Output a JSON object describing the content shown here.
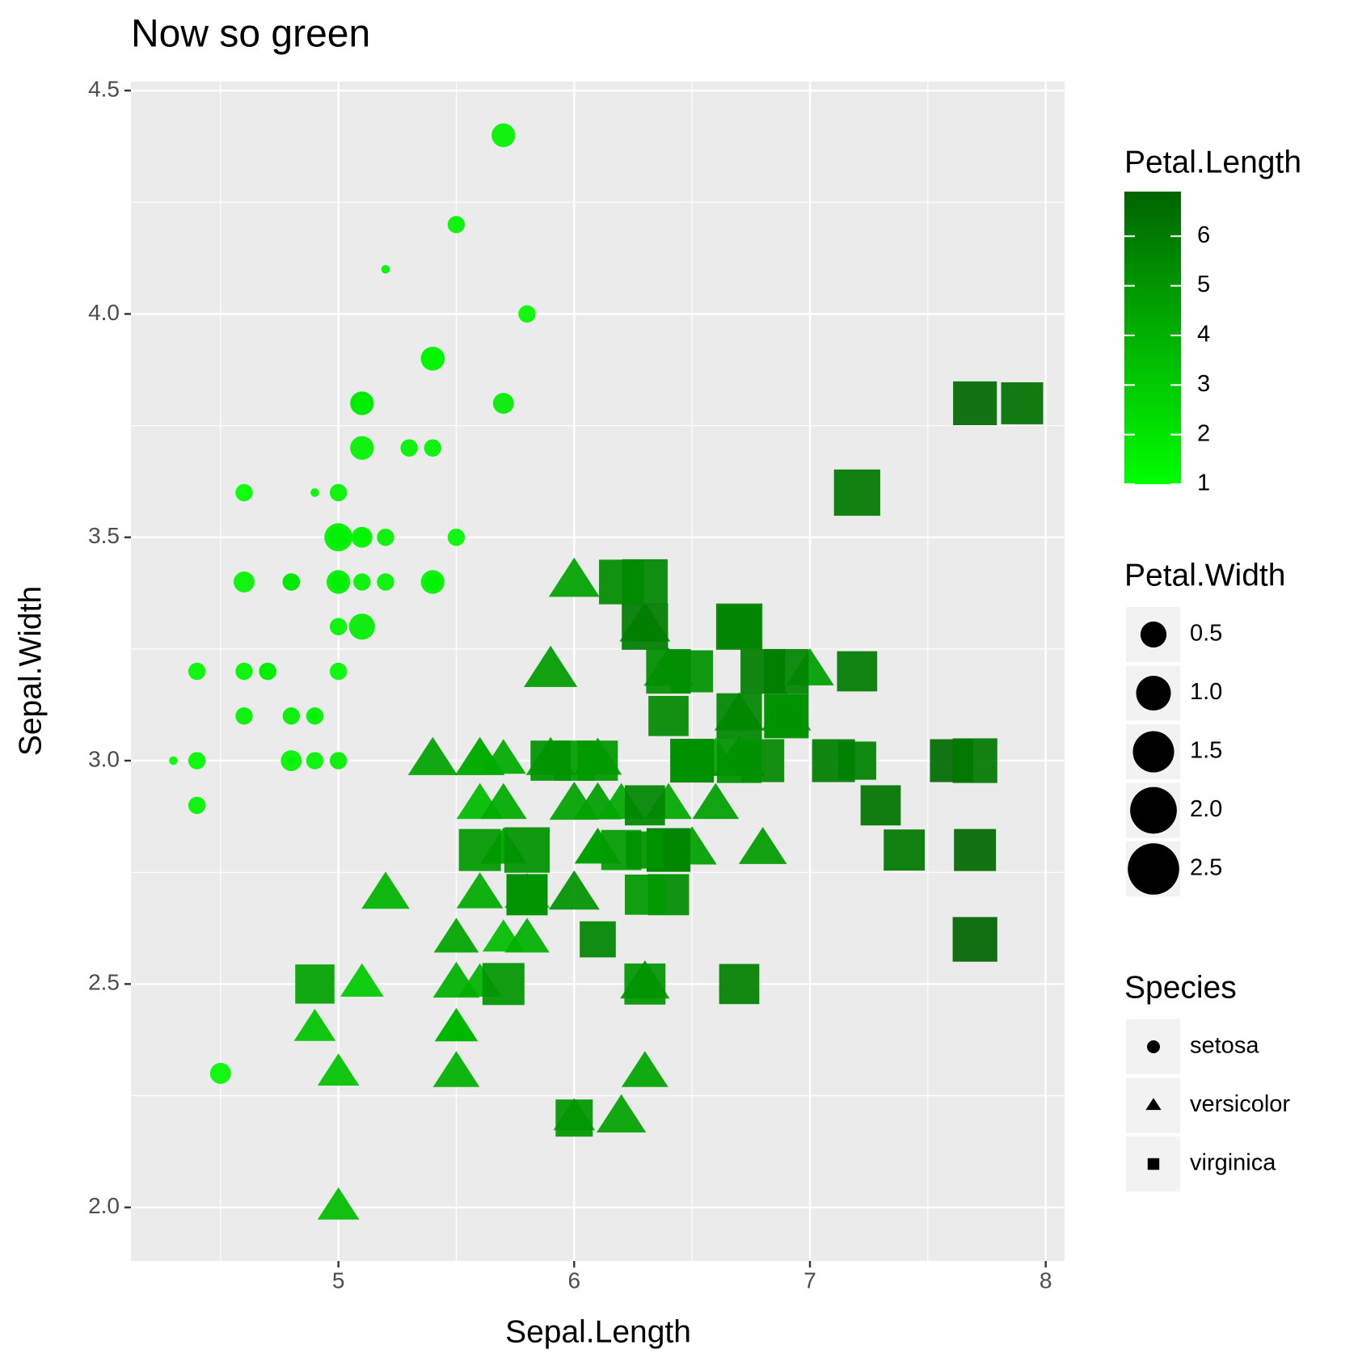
{
  "chart_data": {
    "type": "scatter",
    "title": "Now so green",
    "x_label": "Sepal.Length",
    "y_label": "Sepal.Width",
    "xlim": [
      4.12,
      8.08
    ],
    "ylim": [
      1.88,
      4.52
    ],
    "xticks": [
      5,
      6,
      7,
      8
    ],
    "yticks": [
      {
        "value": 2,
        "label": "2.0"
      },
      2.5,
      {
        "value": 3,
        "label": "3.0"
      },
      3.5,
      {
        "value": 4,
        "label": "4.0"
      },
      4.5
    ],
    "xminor": [
      4.5,
      5.5,
      6.5,
      7.5
    ],
    "yminor": [
      2.25,
      2.75,
      3.25,
      3.75,
      4.25
    ],
    "grid": true,
    "colorbar": {
      "title": "Petal.Length",
      "colors": [
        "#00ff00",
        "#006400"
      ],
      "lim": [
        1,
        6.9
      ],
      "ticks": [
        1,
        2,
        3,
        4,
        5,
        6
      ]
    },
    "size_legend": {
      "title": "Petal.Width",
      "ticks": [
        0.5,
        {
          "value": 1,
          "label": "1.0"
        },
        1.5,
        {
          "value": 2,
          "label": "2.0"
        },
        2.5
      ]
    },
    "shape_legend_title": "Species",
    "series": [
      {
        "name": "setosa",
        "shape": "circle",
        "x": [
          5.1,
          4.9,
          4.7,
          4.6,
          5.0,
          5.4,
          4.6,
          5.0,
          4.4,
          4.9,
          5.4,
          4.8,
          4.8,
          4.3,
          5.8,
          5.7,
          5.4,
          5.1,
          5.7,
          5.1,
          5.4,
          5.1,
          4.6,
          5.1,
          4.8,
          5.0,
          5.0,
          5.2,
          5.2,
          4.7,
          4.8,
          5.4,
          5.2,
          5.5,
          4.9,
          5.0,
          5.5,
          4.9,
          4.4,
          5.1,
          5.0,
          4.5,
          4.4,
          5.0,
          5.1,
          4.8,
          5.1,
          4.6,
          5.3,
          5.0
        ],
        "values": [
          3.5,
          3.0,
          3.2,
          3.1,
          3.6,
          3.9,
          3.4,
          3.4,
          2.9,
          3.1,
          3.7,
          3.4,
          3.0,
          3.0,
          4.0,
          4.4,
          3.9,
          3.5,
          3.8,
          3.8,
          3.4,
          3.7,
          3.6,
          3.3,
          3.4,
          3.0,
          3.4,
          3.5,
          3.4,
          3.2,
          3.1,
          3.4,
          4.1,
          4.2,
          3.1,
          3.2,
          3.5,
          3.6,
          3.0,
          3.4,
          3.5,
          2.3,
          3.2,
          3.5,
          3.8,
          3.0,
          3.8,
          3.2,
          3.7,
          3.3
        ],
        "color_values": [
          1.4,
          1.4,
          1.3,
          1.5,
          1.4,
          1.7,
          1.4,
          1.5,
          1.4,
          1.5,
          1.5,
          1.6,
          1.4,
          1.1,
          1.2,
          1.5,
          1.3,
          1.4,
          1.7,
          1.5,
          1.7,
          1.5,
          1.0,
          1.7,
          1.9,
          1.6,
          1.6,
          1.5,
          1.4,
          1.6,
          1.6,
          1.5,
          1.5,
          1.4,
          1.5,
          1.2,
          1.3,
          1.4,
          1.3,
          1.5,
          1.3,
          1.3,
          1.3,
          1.6,
          1.9,
          1.4,
          1.6,
          1.4,
          1.5,
          1.4
        ],
        "size_values": [
          0.2,
          0.2,
          0.2,
          0.2,
          0.2,
          0.4,
          0.3,
          0.2,
          0.2,
          0.1,
          0.2,
          0.2,
          0.1,
          0.1,
          0.2,
          0.4,
          0.4,
          0.3,
          0.3,
          0.3,
          0.2,
          0.4,
          0.2,
          0.5,
          0.2,
          0.2,
          0.4,
          0.2,
          0.2,
          0.2,
          0.2,
          0.4,
          0.1,
          0.2,
          0.2,
          0.2,
          0.2,
          0.1,
          0.2,
          0.2,
          0.3,
          0.3,
          0.2,
          0.6,
          0.4,
          0.3,
          0.2,
          0.2,
          0.2,
          0.2
        ]
      },
      {
        "name": "versicolor",
        "shape": "triangle",
        "x": [
          7.0,
          6.4,
          6.9,
          5.5,
          6.5,
          5.7,
          6.3,
          4.9,
          6.6,
          5.2,
          5.0,
          5.9,
          6.0,
          6.1,
          5.6,
          6.7,
          5.6,
          5.8,
          6.2,
          5.6,
          5.9,
          6.1,
          6.3,
          6.1,
          6.4,
          6.6,
          6.8,
          6.7,
          6.0,
          5.7,
          5.5,
          5.5,
          5.8,
          6.0,
          5.4,
          6.0,
          6.7,
          6.3,
          5.6,
          5.5,
          5.5,
          6.1,
          5.8,
          5.0,
          5.6,
          5.7,
          5.7,
          6.2,
          5.1,
          5.7
        ],
        "values": [
          3.2,
          3.2,
          3.1,
          2.3,
          2.8,
          2.8,
          3.3,
          2.4,
          2.9,
          2.7,
          2.0,
          3.0,
          2.2,
          2.9,
          2.9,
          3.1,
          3.0,
          2.7,
          2.2,
          2.5,
          3.2,
          2.8,
          2.5,
          2.8,
          2.9,
          3.0,
          2.8,
          3.0,
          2.9,
          2.6,
          2.4,
          2.4,
          2.7,
          2.7,
          3.0,
          3.4,
          3.1,
          2.3,
          3.0,
          2.5,
          2.6,
          3.0,
          2.6,
          2.3,
          2.7,
          3.0,
          2.9,
          2.9,
          2.5,
          2.8
        ],
        "color_values": [
          4.7,
          4.5,
          4.9,
          4.0,
          4.6,
          4.5,
          4.7,
          3.3,
          4.6,
          3.9,
          3.5,
          4.2,
          4.0,
          4.7,
          3.6,
          4.4,
          4.5,
          4.1,
          4.5,
          3.9,
          4.8,
          4.0,
          4.9,
          4.7,
          4.3,
          4.4,
          4.8,
          5.0,
          4.5,
          3.5,
          3.8,
          3.7,
          3.9,
          5.1,
          4.5,
          4.5,
          4.7,
          4.4,
          4.1,
          4.0,
          4.4,
          4.6,
          4.0,
          3.3,
          4.2,
          4.2,
          4.2,
          4.3,
          3.0,
          4.1
        ],
        "size_values": [
          1.4,
          1.5,
          1.5,
          1.3,
          1.5,
          1.3,
          1.6,
          1.0,
          1.3,
          1.4,
          1.0,
          1.5,
          1.0,
          1.4,
          1.3,
          1.4,
          1.5,
          1.0,
          1.5,
          1.1,
          1.8,
          1.3,
          1.5,
          1.2,
          1.3,
          1.4,
          1.4,
          1.7,
          1.5,
          1.0,
          1.1,
          1.0,
          1.2,
          1.6,
          1.5,
          1.6,
          1.5,
          1.3,
          1.3,
          1.3,
          1.2,
          1.4,
          1.2,
          1.0,
          1.3,
          1.2,
          1.3,
          1.3,
          1.1,
          1.3
        ]
      },
      {
        "name": "virginica",
        "shape": "square",
        "x": [
          6.3,
          5.8,
          7.1,
          6.3,
          6.5,
          7.6,
          4.9,
          7.3,
          6.7,
          7.2,
          6.5,
          6.4,
          6.8,
          5.7,
          5.8,
          6.4,
          6.5,
          7.7,
          7.7,
          6.0,
          6.9,
          5.6,
          7.7,
          6.3,
          6.7,
          7.2,
          6.2,
          6.1,
          6.4,
          7.2,
          7.4,
          7.9,
          6.4,
          6.3,
          6.1,
          7.7,
          6.3,
          6.4,
          6.0,
          6.9,
          6.7,
          6.9,
          5.8,
          6.8,
          6.7,
          6.7,
          6.3,
          6.5,
          6.2,
          5.9
        ],
        "values": [
          3.3,
          2.7,
          3.0,
          2.9,
          3.0,
          3.0,
          2.5,
          2.9,
          2.5,
          3.6,
          3.2,
          2.7,
          3.0,
          2.5,
          2.8,
          3.2,
          3.0,
          3.8,
          2.6,
          2.2,
          3.2,
          2.8,
          2.8,
          2.7,
          3.3,
          3.2,
          2.8,
          3.0,
          2.8,
          3.0,
          2.8,
          3.8,
          2.8,
          2.8,
          2.6,
          3.0,
          3.4,
          3.1,
          3.0,
          3.1,
          3.1,
          3.1,
          2.7,
          3.2,
          3.3,
          3.0,
          2.5,
          3.0,
          3.4,
          3.0
        ],
        "color_values": [
          6.0,
          5.1,
          5.9,
          5.6,
          5.8,
          6.6,
          4.5,
          6.3,
          5.8,
          6.1,
          5.1,
          5.3,
          5.5,
          5.0,
          5.1,
          5.3,
          5.5,
          6.7,
          6.9,
          5.0,
          5.7,
          4.9,
          6.7,
          4.9,
          5.7,
          6.0,
          4.8,
          4.9,
          5.6,
          5.8,
          6.1,
          6.4,
          5.6,
          5.1,
          5.6,
          6.1,
          5.6,
          5.5,
          4.8,
          5.4,
          5.6,
          5.1,
          5.1,
          5.9,
          5.7,
          5.2,
          5.0,
          5.2,
          5.4,
          5.1
        ],
        "size_values": [
          2.5,
          1.9,
          2.1,
          1.8,
          2.2,
          2.1,
          1.7,
          1.8,
          1.8,
          2.5,
          2.0,
          1.9,
          2.1,
          2.0,
          2.4,
          2.3,
          1.8,
          2.2,
          2.3,
          1.5,
          2.3,
          2.0,
          2.0,
          1.8,
          2.1,
          1.8,
          1.8,
          1.8,
          2.1,
          1.6,
          1.9,
          2.0,
          2.2,
          1.5,
          1.4,
          2.3,
          2.4,
          1.8,
          1.8,
          2.1,
          2.4,
          2.3,
          1.9,
          2.3,
          2.5,
          2.3,
          1.9,
          2.0,
          2.3,
          1.8
        ]
      }
    ]
  }
}
